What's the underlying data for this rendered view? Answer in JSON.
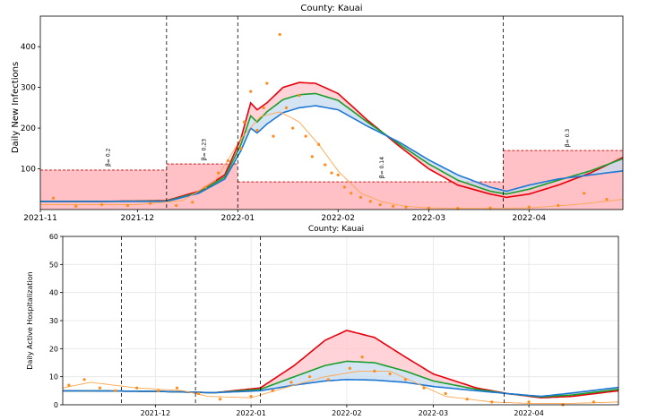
{
  "chart_data": [
    {
      "type": "line",
      "title": "County: Kauai",
      "ylabel": "Daily New Infections",
      "xlabel": "",
      "xlim": [
        "2021-11-01",
        "2022-04-30"
      ],
      "ylim": [
        0,
        475
      ],
      "yticks": [
        100,
        200,
        300,
        400
      ],
      "xticks": [
        {
          "date": "2021-11-01",
          "label": "2021-11"
        },
        {
          "date": "2021-12-01",
          "label": "2021-12"
        },
        {
          "date": "2022-01-01",
          "label": "2022-01"
        },
        {
          "date": "2022-02-01",
          "label": "2022-02"
        },
        {
          "date": "2022-03-01",
          "label": "2022-03"
        },
        {
          "date": "2022-04-01",
          "label": "2022-04"
        }
      ],
      "grid": false,
      "change_points": [
        "2021-12-10",
        "2022-01-01",
        "2022-03-24"
      ],
      "beta_regions": [
        {
          "start": "2021-11-01",
          "end": "2021-12-10",
          "value": 97,
          "label": "β= 0.2"
        },
        {
          "start": "2021-12-10",
          "end": "2022-01-01",
          "value": 112,
          "label": "β= 0.23"
        },
        {
          "start": "2022-01-01",
          "end": "2022-03-24",
          "value": 68,
          "label": "β= 0.14"
        },
        {
          "start": "2022-03-24",
          "end": "2022-04-30",
          "value": 145,
          "label": "β= 0.3"
        }
      ],
      "series": [
        {
          "name": "upper",
          "color": "#e8000b",
          "x": [
            "2021-11-01",
            "2021-11-20",
            "2021-12-10",
            "2021-12-20",
            "2021-12-28",
            "2022-01-02",
            "2022-01-05",
            "2022-01-07",
            "2022-01-10",
            "2022-01-15",
            "2022-01-20",
            "2022-01-25",
            "2022-02-01",
            "2022-02-10",
            "2022-02-20",
            "2022-03-01",
            "2022-03-10",
            "2022-03-20",
            "2022-03-25",
            "2022-04-01",
            "2022-04-10",
            "2022-04-20",
            "2022-04-30"
          ],
          "values": [
            20,
            20,
            22,
            45,
            85,
            175,
            262,
            245,
            262,
            300,
            312,
            310,
            285,
            220,
            155,
            100,
            60,
            38,
            30,
            38,
            60,
            90,
            128
          ]
        },
        {
          "name": "median",
          "color": "#1a9e2c",
          "x": [
            "2021-11-01",
            "2021-11-20",
            "2021-12-10",
            "2021-12-20",
            "2021-12-28",
            "2022-01-02",
            "2022-01-05",
            "2022-01-07",
            "2022-01-10",
            "2022-01-15",
            "2022-01-20",
            "2022-01-25",
            "2022-02-01",
            "2022-02-10",
            "2022-02-20",
            "2022-03-01",
            "2022-03-10",
            "2022-03-20",
            "2022-03-25",
            "2022-04-01",
            "2022-04-10",
            "2022-04-20",
            "2022-04-30"
          ],
          "values": [
            20,
            20,
            21,
            42,
            80,
            160,
            230,
            215,
            240,
            270,
            282,
            285,
            268,
            215,
            160,
            112,
            72,
            45,
            38,
            50,
            72,
            95,
            125
          ]
        },
        {
          "name": "lower",
          "color": "#1f77d4",
          "x": [
            "2021-11-01",
            "2021-11-20",
            "2021-12-10",
            "2021-12-20",
            "2021-12-28",
            "2022-01-02",
            "2022-01-05",
            "2022-01-07",
            "2022-01-10",
            "2022-01-15",
            "2022-01-20",
            "2022-01-25",
            "2022-02-01",
            "2022-02-10",
            "2022-02-20",
            "2022-03-01",
            "2022-03-10",
            "2022-03-20",
            "2022-03-25",
            "2022-04-01",
            "2022-04-10",
            "2022-04-20",
            "2022-04-30"
          ],
          "values": [
            20,
            20,
            20,
            40,
            75,
            145,
            200,
            188,
            210,
            238,
            250,
            255,
            245,
            205,
            165,
            122,
            85,
            55,
            45,
            60,
            75,
            85,
            95
          ]
        },
        {
          "name": "observed smoothed",
          "color": "#ffa64d",
          "x": [
            "2021-11-01",
            "2021-12-01",
            "2021-12-15",
            "2021-12-25",
            "2022-01-02",
            "2022-01-08",
            "2022-01-14",
            "2022-01-20",
            "2022-01-26",
            "2022-02-01",
            "2022-02-08",
            "2022-02-15",
            "2022-02-22",
            "2022-03-01",
            "2022-03-15",
            "2022-04-01",
            "2022-04-15",
            "2022-04-30"
          ],
          "values": [
            12,
            12,
            22,
            70,
            175,
            228,
            240,
            215,
            160,
            95,
            40,
            18,
            8,
            4,
            3,
            4,
            12,
            25
          ]
        }
      ],
      "observed_points": {
        "x": [
          "2021-11-05",
          "2021-11-12",
          "2021-11-20",
          "2021-11-28",
          "2021-12-05",
          "2021-12-13",
          "2021-12-18",
          "2021-12-22",
          "2021-12-26",
          "2021-12-29",
          "2022-01-02",
          "2022-01-03",
          "2022-01-05",
          "2022-01-07",
          "2022-01-09",
          "2022-01-10",
          "2022-01-12",
          "2022-01-14",
          "2022-01-16",
          "2022-01-18",
          "2022-01-20",
          "2022-01-22",
          "2022-01-24",
          "2022-01-26",
          "2022-01-28",
          "2022-01-30",
          "2022-02-01",
          "2022-02-03",
          "2022-02-05",
          "2022-02-08",
          "2022-02-11",
          "2022-02-14",
          "2022-02-18",
          "2022-02-22",
          "2022-03-01",
          "2022-03-10",
          "2022-03-20",
          "2022-04-01",
          "2022-04-10",
          "2022-04-18",
          "2022-04-25"
        ],
        "values": [
          28,
          8,
          12,
          10,
          15,
          10,
          18,
          55,
          90,
          120,
          150,
          215,
          290,
          195,
          250,
          310,
          180,
          430,
          250,
          200,
          280,
          180,
          130,
          160,
          110,
          90,
          85,
          55,
          40,
          30,
          20,
          12,
          8,
          6,
          4,
          3,
          4,
          6,
          10,
          40,
          25
        ]
      }
    },
    {
      "type": "line",
      "title": "County: Kauai",
      "ylabel": "Daily Active Hospitalization",
      "xlabel": "",
      "xlim": [
        "2021-11-01",
        "2022-04-30"
      ],
      "ylim": [
        0,
        60
      ],
      "yticks": [
        0,
        10,
        20,
        30,
        40,
        50,
        60
      ],
      "xticks": [
        {
          "date": "2021-12-01",
          "label": "2021-12"
        },
        {
          "date": "2022-01-01",
          "label": "2022-01"
        },
        {
          "date": "2022-02-01",
          "label": "2022-02"
        },
        {
          "date": "2022-03-01",
          "label": "2022-03"
        },
        {
          "date": "2022-04-01",
          "label": "2022-04"
        }
      ],
      "grid": true,
      "change_points": [
        "2021-11-20",
        "2021-12-14",
        "2022-01-04",
        "2022-03-24"
      ],
      "series": [
        {
          "name": "upper",
          "color": "#e8000b",
          "x": [
            "2021-11-01",
            "2021-12-01",
            "2021-12-20",
            "2022-01-04",
            "2022-01-15",
            "2022-01-25",
            "2022-02-01",
            "2022-02-10",
            "2022-02-20",
            "2022-03-01",
            "2022-03-15",
            "2022-03-25",
            "2022-04-05",
            "2022-04-15",
            "2022-04-30"
          ],
          "values": [
            5,
            4.8,
            4.3,
            6,
            14,
            23,
            26.5,
            24,
            17,
            11,
            6,
            4,
            2.5,
            3,
            5
          ]
        },
        {
          "name": "median",
          "color": "#1a9e2c",
          "x": [
            "2021-11-01",
            "2021-12-01",
            "2021-12-20",
            "2022-01-04",
            "2022-01-15",
            "2022-01-25",
            "2022-02-01",
            "2022-02-10",
            "2022-02-20",
            "2022-03-01",
            "2022-03-15",
            "2022-03-25",
            "2022-04-05",
            "2022-04-15",
            "2022-04-30"
          ],
          "values": [
            5,
            4.8,
            4.3,
            5.5,
            10,
            14,
            15.5,
            15,
            12,
            8.5,
            5.5,
            4,
            2.8,
            3.5,
            5.5
          ]
        },
        {
          "name": "lower",
          "color": "#1f77d4",
          "x": [
            "2021-11-01",
            "2021-12-01",
            "2021-12-20",
            "2022-01-04",
            "2022-01-15",
            "2022-01-25",
            "2022-02-01",
            "2022-02-10",
            "2022-02-20",
            "2022-03-01",
            "2022-03-15",
            "2022-03-25",
            "2022-04-05",
            "2022-04-15",
            "2022-04-30"
          ],
          "values": [
            5,
            4.8,
            4.3,
            5,
            7,
            8.5,
            9,
            8.8,
            8,
            6.5,
            5,
            4,
            3,
            4.2,
            6.2
          ]
        },
        {
          "name": "observed smoothed",
          "color": "#ffa64d",
          "x": [
            "2021-11-01",
            "2021-11-10",
            "2021-11-25",
            "2021-12-10",
            "2021-12-18",
            "2022-01-01",
            "2022-01-15",
            "2022-01-25",
            "2022-02-05",
            "2022-02-15",
            "2022-02-25",
            "2022-03-05",
            "2022-03-20",
            "2022-04-01",
            "2022-04-15",
            "2022-04-30"
          ],
          "values": [
            6,
            8,
            6,
            5,
            3,
            2.5,
            7,
            10,
            12,
            12,
            7,
            3,
            1,
            0.5,
            0.5,
            1
          ]
        }
      ],
      "observed_points": {
        "x": [
          "2021-11-03",
          "2021-11-08",
          "2021-11-13",
          "2021-11-18",
          "2021-11-25",
          "2021-12-02",
          "2021-12-08",
          "2021-12-15",
          "2021-12-22",
          "2022-01-01",
          "2022-01-08",
          "2022-01-14",
          "2022-01-20",
          "2022-01-26",
          "2022-02-02",
          "2022-02-06",
          "2022-02-10",
          "2022-02-15",
          "2022-02-20",
          "2022-02-26",
          "2022-03-05",
          "2022-03-12",
          "2022-03-20",
          "2022-04-01",
          "2022-04-12",
          "2022-04-22"
        ],
        "values": [
          7,
          9,
          6,
          5,
          6,
          5,
          6,
          4,
          2,
          3,
          5,
          8,
          10,
          9,
          13,
          17,
          12,
          11,
          9,
          6,
          4,
          2,
          1,
          1,
          0,
          1
        ]
      }
    }
  ]
}
